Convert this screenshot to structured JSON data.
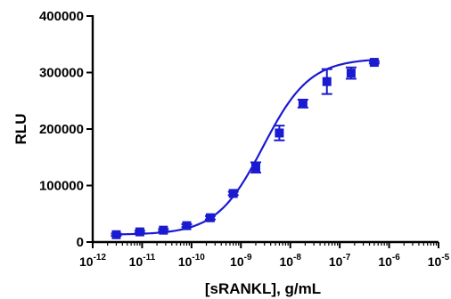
{
  "chart_data": {
    "type": "scatter",
    "xlabel": "[sRANKL], g/mL",
    "ylabel": "RLU",
    "x_scale": "log",
    "xlim": [
      1e-12,
      1e-05
    ],
    "ylim": [
      0,
      400000
    ],
    "x_tick_labels": [
      {
        "base": "10",
        "exp": "-12"
      },
      {
        "base": "10",
        "exp": "-11"
      },
      {
        "base": "10",
        "exp": "-10"
      },
      {
        "base": "10",
        "exp": "-9"
      },
      {
        "base": "10",
        "exp": "-8"
      },
      {
        "base": "10",
        "exp": "-7"
      },
      {
        "base": "10",
        "exp": "-6"
      },
      {
        "base": "10",
        "exp": "-5"
      }
    ],
    "y_tick_labels": [
      "0",
      "100000",
      "200000",
      "300000",
      "400000"
    ],
    "y_ticks": [
      0,
      100000,
      200000,
      300000,
      400000
    ],
    "grid": false,
    "series": [
      {
        "color": "#1a1ad0",
        "marker": "square",
        "points": [
          {
            "x": 3e-12,
            "y": 13000,
            "err": 2000
          },
          {
            "x": 9e-12,
            "y": 18000,
            "err": 2000
          },
          {
            "x": 2.7e-11,
            "y": 21000,
            "err": 2000
          },
          {
            "x": 8e-11,
            "y": 29000,
            "err": 2500
          },
          {
            "x": 2.4e-10,
            "y": 43000,
            "err": 3000
          },
          {
            "x": 7e-10,
            "y": 86000,
            "err": 3000
          },
          {
            "x": 2e-09,
            "y": 132000,
            "err": 9000
          },
          {
            "x": 6e-09,
            "y": 193000,
            "err": 13000
          },
          {
            "x": 1.8e-08,
            "y": 245000,
            "err": 7000
          },
          {
            "x": 5.5e-08,
            "y": 284000,
            "err": 22000
          },
          {
            "x": 1.7e-07,
            "y": 299000,
            "err": 10000
          },
          {
            "x": 5e-07,
            "y": 318000,
            "err": 2000
          }
        ]
      }
    ],
    "fit_curve": {
      "type": "4PL",
      "color": "#1a1ad0",
      "bottom": 13000,
      "top": 325000,
      "log_ec50": -8.55,
      "hill": 0.92,
      "x_range": [
        3e-12,
        5e-07
      ]
    }
  }
}
